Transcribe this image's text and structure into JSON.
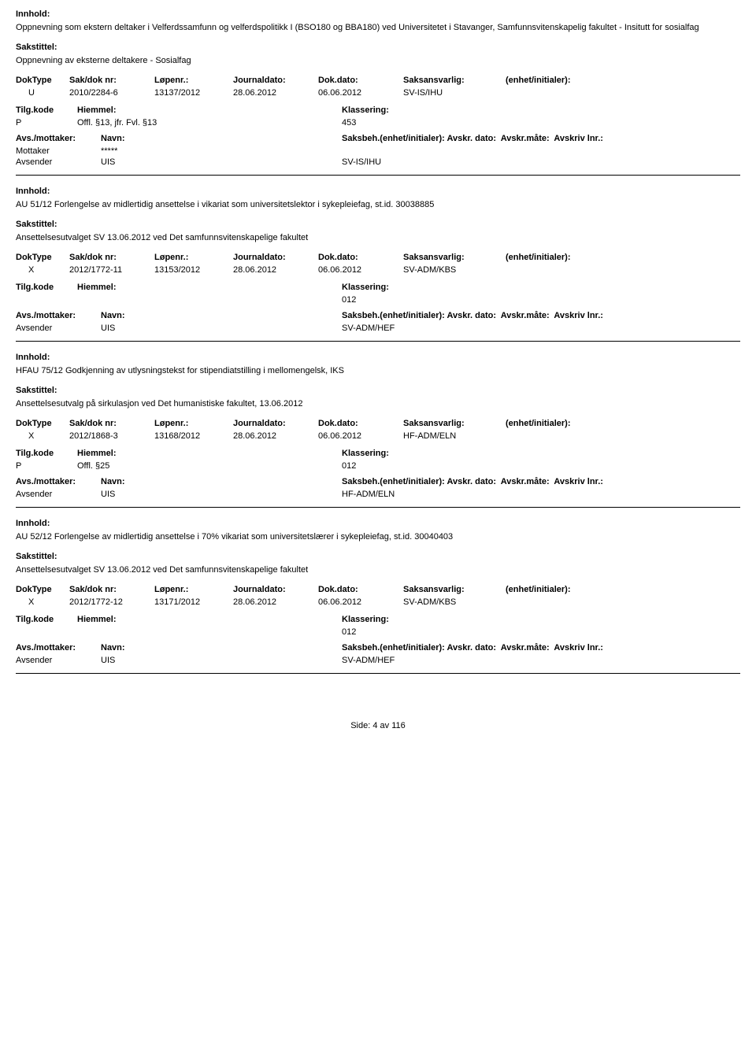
{
  "labels": {
    "innhold": "Innhold:",
    "sakstittel": "Sakstittel:",
    "doktype": "DokType",
    "saknr": "Sak/dok nr:",
    "lopenr": "Løpenr.:",
    "journaldato": "Journaldato:",
    "dokdato": "Dok.dato:",
    "saksansvarlig": "Saksansvarlig:",
    "enhet": "(enhet/initialer):",
    "tilgkode": "Tilg.kode",
    "hjemmel": "Hiemmel:",
    "klassering": "Klassering:",
    "avsmottaker": "Avs./mottaker:",
    "navn": "Navn:",
    "saksbeh": "Saksbeh.(enhet/initialer):",
    "avskrdato": "Avskr. dato:",
    "avskrmate": "Avskr.måte:",
    "avskrivlnr": "Avskriv lnr.:",
    "mottaker": "Mottaker",
    "avsender": "Avsender"
  },
  "records": [
    {
      "innhold": "Oppnevning som ekstern deltaker i Velferdssamfunn og velferdspolitikk I (BSO180 og BBA180) ved Universitetet i Stavanger, Samfunnsvitenskapelig fakultet - Insitutt for sosialfag",
      "sakstittel": "Oppnevning av eksterne deltakere - Sosialfag",
      "doktype": "U",
      "saknr": "2010/2284-6",
      "lopenr": "13137/2012",
      "journaldato": "28.06.2012",
      "dokdato": "06.06.2012",
      "saksansvarlig": "SV-IS/IHU",
      "tilgkode": "P",
      "hjemmel": "Offl. §13, jfr. Fvl. §13",
      "klassering": "453",
      "parties": [
        {
          "role": "Mottaker",
          "navn": "*****",
          "saksbeh": ""
        },
        {
          "role": "Avsender",
          "navn": "UIS",
          "saksbeh": "SV-IS/IHU"
        }
      ]
    },
    {
      "innhold": "AU 51/12 Forlengelse av midlertidig ansettelse i vikariat som universitetslektor i sykepleiefag, st.id. 30038885",
      "sakstittel": "Ansettelsesutvalget SV 13.06.2012 ved Det samfunnsvitenskapelige fakultet",
      "doktype": "X",
      "saknr": "2012/1772-11",
      "lopenr": "13153/2012",
      "journaldato": "28.06.2012",
      "dokdato": "06.06.2012",
      "saksansvarlig": "SV-ADM/KBS",
      "tilgkode": "",
      "hjemmel": "",
      "klassering": "012",
      "parties": [
        {
          "role": "Avsender",
          "navn": "UIS",
          "saksbeh": "SV-ADM/HEF"
        }
      ]
    },
    {
      "innhold": "HFAU 75/12 Godkjenning av utlysningstekst for stipendiatstilling i mellomengelsk, IKS",
      "sakstittel": "Ansettelsesutvalg på sirkulasjon ved Det humanistiske fakultet, 13.06.2012",
      "doktype": "X",
      "saknr": "2012/1868-3",
      "lopenr": "13168/2012",
      "journaldato": "28.06.2012",
      "dokdato": "06.06.2012",
      "saksansvarlig": "HF-ADM/ELN",
      "tilgkode": "P",
      "hjemmel": "Offl. §25",
      "klassering": "012",
      "parties": [
        {
          "role": "Avsender",
          "navn": "UIS",
          "saksbeh": "HF-ADM/ELN"
        }
      ]
    },
    {
      "innhold": "AU 52/12 Forlengelse av midlertidig ansettelse i 70% vikariat som universitetslærer i sykepleiefag, st.id. 30040403",
      "sakstittel": "Ansettelsesutvalget SV 13.06.2012 ved Det samfunnsvitenskapelige fakultet",
      "doktype": "X",
      "saknr": "2012/1772-12",
      "lopenr": "13171/2012",
      "journaldato": "28.06.2012",
      "dokdato": "06.06.2012",
      "saksansvarlig": "SV-ADM/KBS",
      "tilgkode": "",
      "hjemmel": "",
      "klassering": "012",
      "parties": [
        {
          "role": "Avsender",
          "navn": "UIS",
          "saksbeh": "SV-ADM/HEF"
        }
      ]
    }
  ],
  "footer": {
    "prefix": "Side:",
    "page": "4",
    "sep": "av",
    "total": "116"
  }
}
